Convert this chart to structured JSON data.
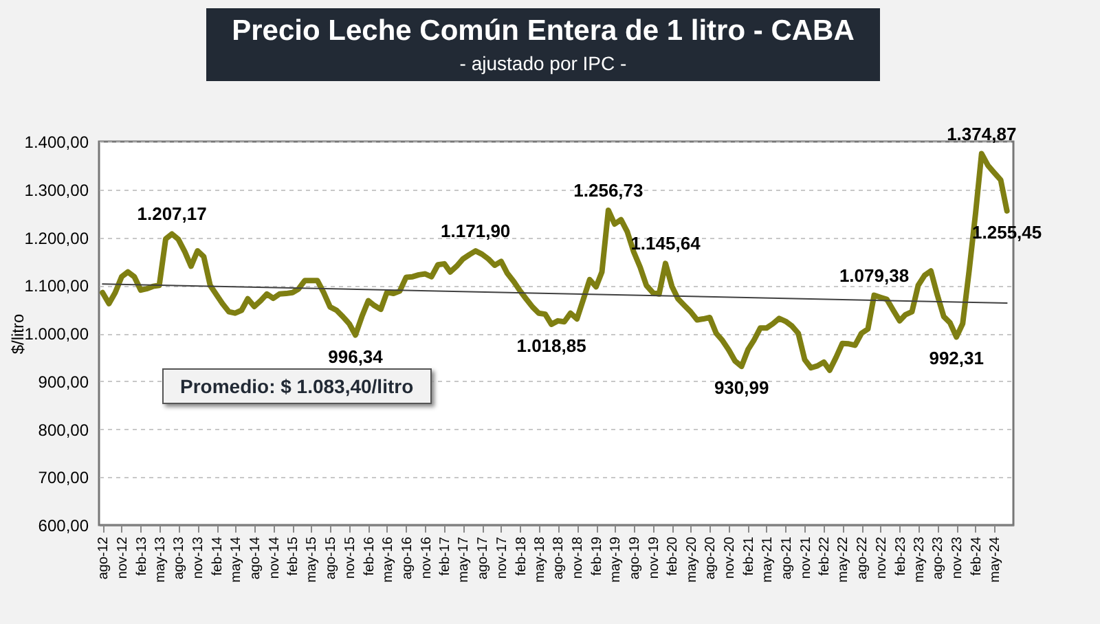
{
  "chart_data": {
    "type": "line",
    "title": "Precio Leche Común Entera de 1 litro - CABA",
    "subtitle": "- ajustado por IPC -",
    "ylabel": "$/litro",
    "annotations": [
      "Promedio: $ 1.083,40/litro"
    ],
    "x": [
      "2012-08",
      "2012-09",
      "2012-10",
      "2012-11",
      "2012-12",
      "2013-01",
      "2013-02",
      "2013-03",
      "2013-04",
      "2013-05",
      "2013-06",
      "2013-07",
      "2013-08",
      "2013-09",
      "2013-10",
      "2013-11",
      "2013-12",
      "2014-01",
      "2014-02",
      "2014-03",
      "2014-04",
      "2014-05",
      "2014-06",
      "2014-07",
      "2014-08",
      "2014-09",
      "2014-10",
      "2014-11",
      "2014-12",
      "2015-01",
      "2015-02",
      "2015-03",
      "2015-04",
      "2015-05",
      "2015-06",
      "2015-07",
      "2015-08",
      "2015-09",
      "2015-10",
      "2015-11",
      "2015-12",
      "2016-01",
      "2016-02",
      "2016-03",
      "2016-04",
      "2016-05",
      "2016-06",
      "2016-07",
      "2016-08",
      "2016-09",
      "2016-10",
      "2016-11",
      "2016-12",
      "2017-01",
      "2017-02",
      "2017-03",
      "2017-04",
      "2017-05",
      "2017-06",
      "2017-07",
      "2017-08",
      "2017-09",
      "2017-10",
      "2017-11",
      "2017-12",
      "2018-01",
      "2018-02",
      "2018-03",
      "2018-04",
      "2018-05",
      "2018-06",
      "2018-07",
      "2018-08",
      "2018-09",
      "2018-10",
      "2018-11",
      "2018-12",
      "2019-01",
      "2019-02",
      "2019-03",
      "2019-04",
      "2019-05",
      "2019-06",
      "2019-07",
      "2019-08",
      "2019-09",
      "2019-10",
      "2019-11",
      "2019-12",
      "2020-01",
      "2020-02",
      "2020-03",
      "2020-04",
      "2020-05",
      "2020-06",
      "2020-07",
      "2020-08",
      "2020-09",
      "2020-10",
      "2020-11",
      "2020-12",
      "2021-01",
      "2021-02",
      "2021-03",
      "2021-04",
      "2021-05",
      "2021-06",
      "2021-07",
      "2021-08",
      "2021-09",
      "2021-10",
      "2021-11",
      "2021-12",
      "2022-01",
      "2022-02",
      "2022-03",
      "2022-04",
      "2022-05",
      "2022-06",
      "2022-07",
      "2022-08",
      "2022-09",
      "2022-10",
      "2022-11",
      "2022-12",
      "2023-01",
      "2023-02",
      "2023-03",
      "2023-04",
      "2023-05",
      "2023-06",
      "2023-07",
      "2023-08",
      "2023-09",
      "2023-10",
      "2023-11",
      "2023-12",
      "2024-01",
      "2024-02",
      "2024-03",
      "2024-04",
      "2024-05",
      "2024-06",
      "2024-07"
    ],
    "series": [
      {
        "color": "#7f7f12",
        "values": [
          1085,
          1062,
          1085,
          1118,
          1128,
          1118,
          1090,
          1093,
          1098,
          1100,
          1197,
          1207.17,
          1196,
          1170,
          1140,
          1172,
          1160,
          1100,
          1080,
          1062,
          1045,
          1042,
          1048,
          1072,
          1056,
          1068,
          1082,
          1073,
          1082,
          1083,
          1085,
          1092,
          1110,
          1110,
          1110,
          1085,
          1055,
          1048,
          1035,
          1020,
          996.34,
          1035,
          1068,
          1058,
          1050,
          1086,
          1083,
          1088,
          1117,
          1118,
          1122,
          1124,
          1118,
          1143,
          1145,
          1128,
          1140,
          1155,
          1164,
          1171.9,
          1165,
          1155,
          1142,
          1150,
          1125,
          1108,
          1088,
          1072,
          1055,
          1042,
          1040,
          1018.85,
          1026,
          1024,
          1042,
          1030,
          1070,
          1112,
          1097,
          1128,
          1256.73,
          1228,
          1237,
          1212,
          1170,
          1138,
          1100,
          1085,
          1082,
          1145.64,
          1098,
          1072,
          1058,
          1045,
          1028,
          1030,
          1033,
          1000,
          985,
          965,
          942,
          930.99,
          966,
          985,
          1011,
          1011,
          1020,
          1031,
          1025,
          1015,
          1000,
          945,
          928,
          932,
          940,
          923,
          950,
          979,
          978,
          975,
          1000,
          1009,
          1079.38,
          1075,
          1071,
          1048,
          1026,
          1039,
          1045,
          1100,
          1121,
          1130,
          1080,
          1035,
          1022,
          992.31,
          1020,
          1130,
          1250,
          1374.87,
          1350,
          1335,
          1320,
          1255.45
        ],
        "value_labels": [
          null,
          null,
          null,
          null,
          null,
          null,
          null,
          null,
          null,
          null,
          null,
          "1.207,17",
          null,
          null,
          null,
          null,
          null,
          null,
          null,
          null,
          null,
          null,
          null,
          null,
          null,
          null,
          null,
          null,
          null,
          null,
          null,
          null,
          null,
          null,
          null,
          null,
          null,
          null,
          null,
          null,
          "996,34",
          null,
          null,
          null,
          null,
          null,
          null,
          null,
          null,
          null,
          null,
          null,
          null,
          null,
          null,
          null,
          null,
          null,
          null,
          "1.171,90",
          null,
          null,
          null,
          null,
          null,
          null,
          null,
          null,
          null,
          null,
          null,
          "1.018,85",
          null,
          null,
          null,
          null,
          null,
          null,
          null,
          null,
          "1.256,73",
          null,
          null,
          null,
          null,
          null,
          null,
          null,
          null,
          "1.145,64",
          null,
          null,
          null,
          null,
          null,
          null,
          null,
          null,
          null,
          null,
          null,
          "930,99",
          null,
          null,
          null,
          null,
          null,
          null,
          null,
          null,
          null,
          null,
          null,
          null,
          null,
          null,
          null,
          null,
          null,
          null,
          null,
          null,
          "1.079,38",
          null,
          null,
          null,
          null,
          null,
          null,
          null,
          null,
          null,
          null,
          null,
          null,
          "992,31",
          null,
          null,
          null,
          "1.374,87",
          null,
          null,
          null,
          "1.255,45"
        ]
      },
      {
        "type": "line",
        "color": "#404040",
        "x": [
          "2012-08",
          "2024-07"
        ],
        "values": [
          1103,
          1063
        ]
      }
    ],
    "xlim": [
      "2012-07-15",
      "2024-08-01"
    ],
    "xticks": [
      {
        "value": "2012-08",
        "label": "ago-12"
      },
      {
        "value": "2012-11",
        "label": "nov-12"
      },
      {
        "value": "2013-02",
        "label": "feb-13"
      },
      {
        "value": "2013-05",
        "label": "may-13"
      },
      {
        "value": "2013-08",
        "label": "ago-13"
      },
      {
        "value": "2013-11",
        "label": "nov-13"
      },
      {
        "value": "2014-02",
        "label": "feb-14"
      },
      {
        "value": "2014-05",
        "label": "may-14"
      },
      {
        "value": "2014-08",
        "label": "ago-14"
      },
      {
        "value": "2014-11",
        "label": "nov-14"
      },
      {
        "value": "2015-02",
        "label": "feb-15"
      },
      {
        "value": "2015-05",
        "label": "may-15"
      },
      {
        "value": "2015-08",
        "label": "ago-15"
      },
      {
        "value": "2015-11",
        "label": "nov-15"
      },
      {
        "value": "2016-02",
        "label": "feb-16"
      },
      {
        "value": "2016-05",
        "label": "may-16"
      },
      {
        "value": "2016-08",
        "label": "ago-16"
      },
      {
        "value": "2016-11",
        "label": "nov-16"
      },
      {
        "value": "2017-02",
        "label": "feb-17"
      },
      {
        "value": "2017-05",
        "label": "may-17"
      },
      {
        "value": "2017-08",
        "label": "ago-17"
      },
      {
        "value": "2017-11",
        "label": "nov-17"
      },
      {
        "value": "2018-02",
        "label": "feb-18"
      },
      {
        "value": "2018-05",
        "label": "may-18"
      },
      {
        "value": "2018-08",
        "label": "ago-18"
      },
      {
        "value": "2018-11",
        "label": "nov-18"
      },
      {
        "value": "2019-02",
        "label": "feb-19"
      },
      {
        "value": "2019-05",
        "label": "may-19"
      },
      {
        "value": "2019-08",
        "label": "ago-19"
      },
      {
        "value": "2019-11",
        "label": "nov-19"
      },
      {
        "value": "2020-02",
        "label": "feb-20"
      },
      {
        "value": "2020-05",
        "label": "may-20"
      },
      {
        "value": "2020-08",
        "label": "ago-20"
      },
      {
        "value": "2020-11",
        "label": "nov-20"
      },
      {
        "value": "2021-02",
        "label": "feb-21"
      },
      {
        "value": "2021-05",
        "label": "may-21"
      },
      {
        "value": "2021-08",
        "label": "ago-21"
      },
      {
        "value": "2021-11",
        "label": "nov-21"
      },
      {
        "value": "2022-02",
        "label": "feb-22"
      },
      {
        "value": "2022-05",
        "label": "may-22"
      },
      {
        "value": "2022-08",
        "label": "ago-22"
      },
      {
        "value": "2022-11",
        "label": "nov-22"
      },
      {
        "value": "2023-02",
        "label": "feb-23"
      },
      {
        "value": "2023-05",
        "label": "may-23"
      },
      {
        "value": "2023-08",
        "label": "ago-23"
      },
      {
        "value": "2023-11",
        "label": "nov-23"
      },
      {
        "value": "2024-02",
        "label": "feb-24"
      },
      {
        "value": "2024-05",
        "label": "may-24"
      }
    ],
    "ylim": [
      600,
      1400
    ],
    "yticks": [
      {
        "value": 600,
        "label": "600,00"
      },
      {
        "value": 700,
        "label": "700,00"
      },
      {
        "value": 800,
        "label": "800,00"
      },
      {
        "value": 900,
        "label": "900,00"
      },
      {
        "value": 1000,
        "label": "1.000,00"
      },
      {
        "value": 1100,
        "label": "1.100,00"
      },
      {
        "value": 1200,
        "label": "1.200,00"
      },
      {
        "value": 1300,
        "label": "1.300,00"
      },
      {
        "value": 1400,
        "label": "1.400,00"
      }
    ],
    "grid": "y",
    "marker": "none",
    "line_style": "solid"
  }
}
